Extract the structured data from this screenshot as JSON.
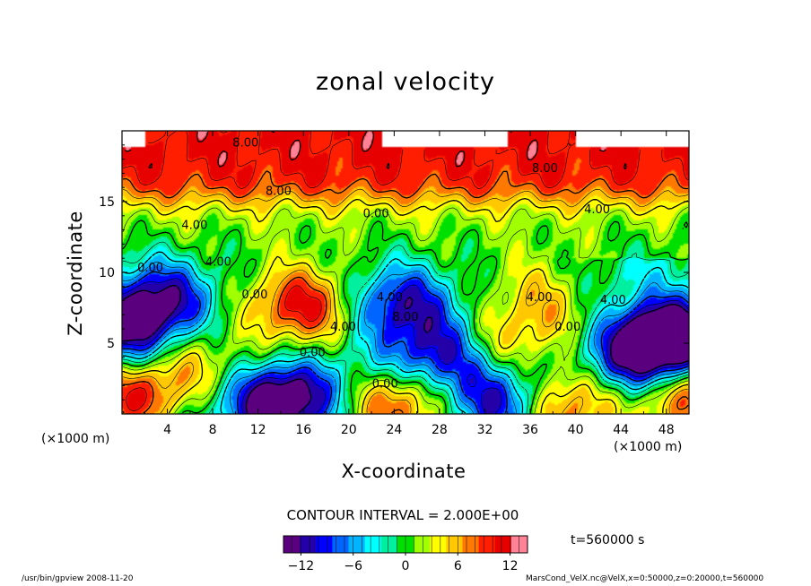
{
  "chart_data": {
    "type": "heatmap",
    "title": "zonal velocity",
    "xlabel": "X-coordinate",
    "ylabel": "Z-coordinate",
    "x_unit": "(×1000 m)",
    "y_unit": "(×1000 m)",
    "xlim": [
      0,
      50
    ],
    "ylim": [
      0,
      20
    ],
    "x_ticks": [
      4,
      8,
      12,
      16,
      20,
      24,
      28,
      32,
      36,
      40,
      44,
      48
    ],
    "y_ticks": [
      5,
      10,
      15
    ],
    "contour_interval": "CONTOUR INTERVAL = 2.000E+00",
    "time": "t=560000 s",
    "colorbar": {
      "range": [
        -14,
        14
      ],
      "ticks": [
        -12,
        -6,
        0,
        6,
        12
      ],
      "colors": [
        "#5a007f",
        "#2300a8",
        "#0000ff",
        "#0064ff",
        "#00b4ff",
        "#00ffff",
        "#00f0a0",
        "#00e000",
        "#a0ff00",
        "#ffff00",
        "#ffc800",
        "#ff7800",
        "#ff1e00",
        "#e60000",
        "#ff8296"
      ]
    },
    "contour_labels": [
      {
        "text": "8.00",
        "x": 10.9,
        "z": 19.1
      },
      {
        "text": "8.00",
        "x": 13.8,
        "z": 15.7
      },
      {
        "text": "8.00",
        "x": 37.3,
        "z": 17.3
      },
      {
        "text": "4.00",
        "x": 6.4,
        "z": 13.3
      },
      {
        "text": "4.00",
        "x": 8.5,
        "z": 10.7
      },
      {
        "text": "4.00",
        "x": 41.9,
        "z": 14.4
      },
      {
        "text": "4.00",
        "x": 36.8,
        "z": 8.2
      },
      {
        "text": "4.00",
        "x": 43.3,
        "z": 8.0
      },
      {
        "text": "4.00",
        "x": 23.6,
        "z": 8.2
      },
      {
        "text": "4.00",
        "x": 19.5,
        "z": 6.1
      },
      {
        "text": "0.00",
        "x": 22.4,
        "z": 14.1
      },
      {
        "text": "0.00",
        "x": 2.5,
        "z": 10.3
      },
      {
        "text": "0.00",
        "x": 11.7,
        "z": 8.4
      },
      {
        "text": "0.00",
        "x": 16.8,
        "z": 4.3
      },
      {
        "text": "0.00",
        "x": 23.2,
        "z": 2.1
      },
      {
        "text": "0.00",
        "x": 39.3,
        "z": 6.1
      },
      {
        "text": "8.00",
        "x": 25.0,
        "z": 6.8
      }
    ],
    "value_field_description": "zonal velocity field u(x,z), m/s",
    "features": [
      {
        "kind": "max",
        "x": 15.8,
        "z": 7.6,
        "value": 13
      },
      {
        "kind": "max",
        "x": 1.0,
        "z": 1.1,
        "value": 12
      },
      {
        "kind": "max",
        "x": 24.4,
        "z": 0.6,
        "value": 11
      },
      {
        "kind": "max",
        "x": 38.5,
        "z": 0.5,
        "value": 12
      },
      {
        "kind": "max",
        "x": 49.5,
        "z": 1.2,
        "value": 11
      },
      {
        "kind": "max",
        "x": 32.8,
        "z": 5.2,
        "value": 9
      },
      {
        "kind": "max",
        "x": 5.8,
        "z": 3.6,
        "value": 7
      },
      {
        "kind": "max",
        "x": 37.2,
        "z": 7.9,
        "value": 9
      },
      {
        "kind": "min",
        "x": 3.5,
        "z": 8.2,
        "value": -9
      },
      {
        "kind": "min",
        "x": 0.5,
        "z": 5.8,
        "value": -10
      },
      {
        "kind": "min",
        "x": 14.2,
        "z": 0.8,
        "value": -13
      },
      {
        "kind": "min",
        "x": 24.6,
        "z": 7.8,
        "value": -9
      },
      {
        "kind": "min",
        "x": 28.6,
        "z": 4.0,
        "value": -8
      },
      {
        "kind": "min",
        "x": 33.6,
        "z": 0.8,
        "value": -10
      },
      {
        "kind": "min",
        "x": 48.8,
        "z": 5.6,
        "value": -14
      },
      {
        "kind": "min",
        "x": 45.7,
        "z": 4.2,
        "value": -11
      }
    ],
    "grid": false,
    "legend": "bottom"
  },
  "footer": {
    "left": "/usr/bin/gpview   2008-11-20",
    "right": "MarsCond_VelX.nc@VelX,x=0:50000,z=0:20000,t=560000"
  }
}
